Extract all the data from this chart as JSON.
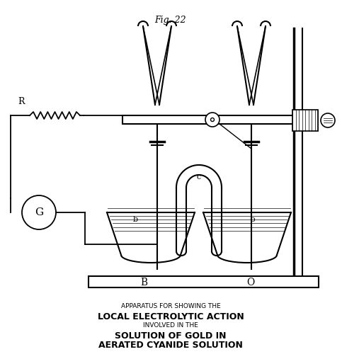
{
  "fig_label": "Fig. 22",
  "title_line1": "APPARATUS FOR SHOWING THE",
  "title_line2": "LOCAL ELECTROLYTIC ACTION",
  "title_line3": "INVOLVED IN THE",
  "title_line4": "SOLUTION OF GOLD IN",
  "title_line5": "AERATED CYANIDE SOLUTION",
  "bg_color": "#ffffff",
  "line_color": "#000000",
  "label_B": "B",
  "label_O": "O",
  "label_b": "b",
  "label_o": "o",
  "label_c": "c",
  "label_R": "R",
  "label_G": "G",
  "figsize": [
    4.83,
    5.07
  ],
  "dpi": 100,
  "xlim": [
    0,
    483
  ],
  "ylim": [
    0,
    507
  ]
}
